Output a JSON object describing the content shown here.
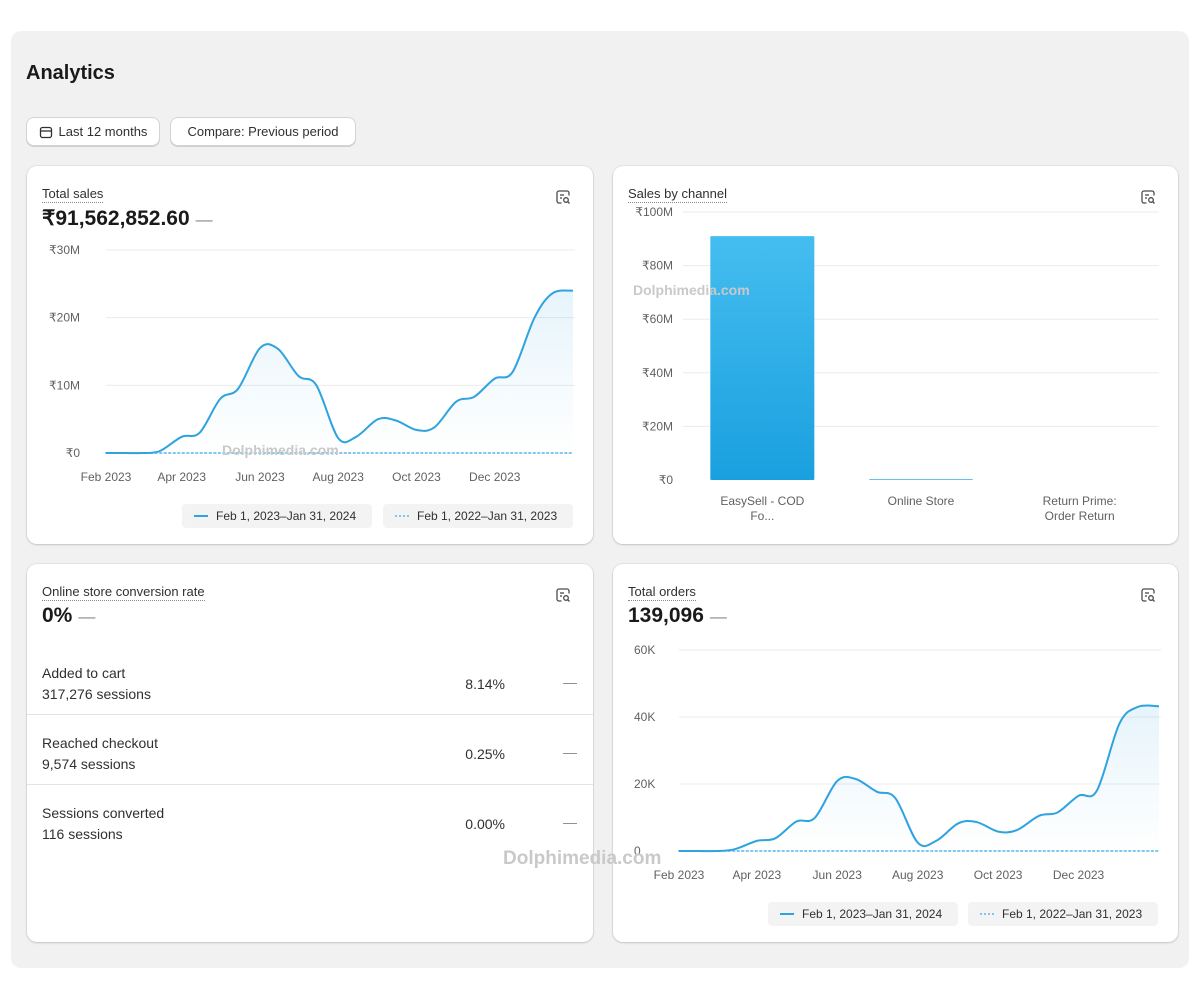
{
  "page": {
    "title": "Analytics"
  },
  "toolbar": {
    "date_range_label": "Last 12 months",
    "compare_label": "Compare: Previous period"
  },
  "colors": {
    "primary_series": "#2ea3e0",
    "comparison_series": "#7ec8ee",
    "bar_fill": "#1aa0df"
  },
  "icons": {
    "calendar": "calendar-icon",
    "card_action": "chart-explore-icon"
  },
  "watermark": {
    "text": "Dolphimedia.com"
  },
  "total_sales": {
    "label": "Total sales",
    "value": "₹91,562,852.60",
    "change": "—",
    "legend_current": "Feb 1, 2023–Jan 31, 2024",
    "legend_previous": "Feb 1, 2022–Jan 31, 2023"
  },
  "sales_by_channel": {
    "label": "Sales by channel"
  },
  "conversion": {
    "label": "Online store conversion rate",
    "value": "0%",
    "change": "—",
    "rows": [
      {
        "name": "Added to cart",
        "sessions": "317,276 sessions",
        "rate": "8.14%",
        "change": "—"
      },
      {
        "name": "Reached checkout",
        "sessions": "9,574 sessions",
        "rate": "0.25%",
        "change": "—"
      },
      {
        "name": "Sessions converted",
        "sessions": "116 sessions",
        "rate": "0.00%",
        "change": "—"
      }
    ]
  },
  "total_orders": {
    "label": "Total orders",
    "value": "139,096",
    "change": "—",
    "legend_current": "Feb 1, 2023–Jan 31, 2024",
    "legend_previous": "Feb 1, 2022–Jan 31, 2023"
  },
  "chart_data": [
    {
      "type": "line",
      "title": "Total sales",
      "x_tick_labels": [
        "Feb 2023",
        "Apr 2023",
        "Jun 2023",
        "Aug 2023",
        "Oct 2023",
        "Dec 2023"
      ],
      "y_tick_labels": [
        "₹0",
        "₹10M",
        "₹20M",
        "₹30M"
      ],
      "ylim": [
        0,
        30
      ],
      "y_unit": "₹M",
      "x": [
        "2023-02-01",
        "2023-02-15",
        "2023-03-01",
        "2023-03-15",
        "2023-04-01",
        "2023-04-15",
        "2023-05-01",
        "2023-05-15",
        "2023-06-01",
        "2023-06-15",
        "2023-07-01",
        "2023-07-15",
        "2023-08-01",
        "2023-08-15",
        "2023-09-01",
        "2023-09-15",
        "2023-10-01",
        "2023-10-15",
        "2023-11-01",
        "2023-11-15",
        "2023-12-01",
        "2023-12-15",
        "2024-01-01",
        "2024-01-15",
        "2024-01-31"
      ],
      "series": [
        {
          "name": "Feb 1, 2023–Jan 31, 2024",
          "values": [
            0,
            0,
            0,
            0.3,
            2.4,
            3.0,
            8.0,
            9.5,
            15.5,
            15.4,
            11.4,
            10.0,
            2.2,
            2.4,
            5.0,
            4.8,
            3.4,
            3.8,
            7.6,
            8.3,
            11.0,
            12.0,
            20.0,
            23.6,
            24.0
          ]
        },
        {
          "name": "Feb 1, 2022–Jan 31, 2023",
          "values": [
            0,
            0,
            0,
            0,
            0,
            0,
            0,
            0,
            0,
            0,
            0,
            0,
            0,
            0,
            0,
            0,
            0,
            0,
            0,
            0,
            0,
            0,
            0,
            0,
            0
          ]
        }
      ],
      "grid": true,
      "legend_position": "bottom"
    },
    {
      "type": "bar",
      "title": "Sales by channel",
      "categories": [
        "EasySell - COD Fo...",
        "Online Store",
        "Return Prime: Order Return"
      ],
      "category_lines": [
        [
          "EasySell - COD",
          "Fo..."
        ],
        [
          "Online Store"
        ],
        [
          "Return Prime:",
          "Order Return"
        ]
      ],
      "values": [
        91.0,
        0.3,
        0
      ],
      "y_tick_labels": [
        "₹0",
        "₹20M",
        "₹40M",
        "₹60M",
        "₹80M",
        "₹100M"
      ],
      "ylim": [
        0,
        100
      ],
      "y_unit": "₹M",
      "grid": true
    },
    {
      "type": "line",
      "title": "Total orders",
      "x_tick_labels": [
        "Feb 2023",
        "Apr 2023",
        "Jun 2023",
        "Aug 2023",
        "Oct 2023",
        "Dec 2023"
      ],
      "y_tick_labels": [
        "0",
        "20K",
        "40K",
        "60K"
      ],
      "ylim": [
        0,
        60000
      ],
      "x": [
        "2023-02-01",
        "2023-02-15",
        "2023-03-01",
        "2023-03-15",
        "2023-04-01",
        "2023-04-15",
        "2023-05-01",
        "2023-05-15",
        "2023-06-01",
        "2023-06-15",
        "2023-07-01",
        "2023-07-15",
        "2023-08-01",
        "2023-08-15",
        "2023-09-01",
        "2023-09-15",
        "2023-10-01",
        "2023-10-15",
        "2023-11-01",
        "2023-11-15",
        "2023-12-01",
        "2023-12-15",
        "2024-01-01",
        "2024-01-15",
        "2024-01-31"
      ],
      "series": [
        {
          "name": "Feb 1, 2023–Jan 31, 2024",
          "values": [
            0,
            0,
            0,
            500,
            3000,
            3800,
            8800,
            9900,
            20900,
            21500,
            17700,
            15800,
            2500,
            3000,
            8300,
            8600,
            5800,
            6200,
            10500,
            11500,
            16500,
            18100,
            38000,
            43000,
            43200
          ]
        },
        {
          "name": "Feb 1, 2022–Jan 31, 2023",
          "values": [
            0,
            0,
            0,
            0,
            0,
            0,
            0,
            0,
            0,
            0,
            0,
            0,
            0,
            0,
            0,
            0,
            0,
            0,
            0,
            0,
            0,
            0,
            0,
            0,
            0
          ]
        }
      ],
      "grid": true,
      "legend_position": "bottom"
    }
  ]
}
